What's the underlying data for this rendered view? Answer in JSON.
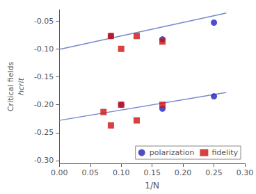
{
  "chart_data": {
    "type": "scatter",
    "xlabel": "1/N",
    "ylabel": "Critical fields\nhcrit",
    "xlim": [
      0.0,
      0.3
    ],
    "ylim": [
      -0.305,
      -0.03
    ],
    "xticks": [
      {
        "value": 0.0,
        "label": "0.00"
      },
      0.05,
      {
        "value": 0.1,
        "label": "0.10"
      },
      0.15,
      {
        "value": 0.2,
        "label": "0.20"
      },
      0.25,
      {
        "value": 0.3,
        "label": "0.30"
      }
    ],
    "yticks": [
      {
        "value": -0.3,
        "label": "-0.30"
      },
      -0.25,
      {
        "value": -0.2,
        "label": "-0.20"
      },
      -0.15,
      {
        "value": -0.1,
        "label": "-0.10"
      },
      -0.05
    ],
    "grid": false,
    "legend": "lower right",
    "series": [
      {
        "type": "line",
        "color": "#7788cc",
        "x": [
          0.0,
          0.27
        ],
        "values": [
          -0.101,
          -0.036
        ]
      },
      {
        "type": "line",
        "color": "#7788cc",
        "x": [
          0.0,
          0.27
        ],
        "values": [
          -0.228,
          -0.178
        ]
      },
      {
        "type": "scatter",
        "name": "polarization",
        "color": "#2222bb",
        "marker": "circle",
        "x": [
          0.0833,
          0.1667,
          0.25
        ],
        "values": [
          -0.077,
          -0.083,
          -0.053
        ]
      },
      {
        "type": "scatter",
        "name": "fidelity",
        "color": "#cc1111",
        "marker": "square",
        "x": [
          0.0833,
          0.1,
          0.125,
          0.1667
        ],
        "values": [
          -0.077,
          -0.1,
          -0.077,
          -0.087
        ]
      },
      {
        "type": "scatter",
        "name": "polarization",
        "color": "#2222bb",
        "marker": "circle",
        "x": [
          0.1,
          0.1667,
          0.25
        ],
        "values": [
          -0.2,
          -0.207,
          -0.185
        ]
      },
      {
        "type": "scatter",
        "name": "fidelity",
        "color": "#cc1111",
        "marker": "square",
        "x": [
          0.0714,
          0.0833,
          0.1,
          0.125,
          0.1667
        ],
        "values": [
          -0.213,
          -0.237,
          -0.2,
          -0.228,
          -0.2
        ]
      }
    ]
  }
}
